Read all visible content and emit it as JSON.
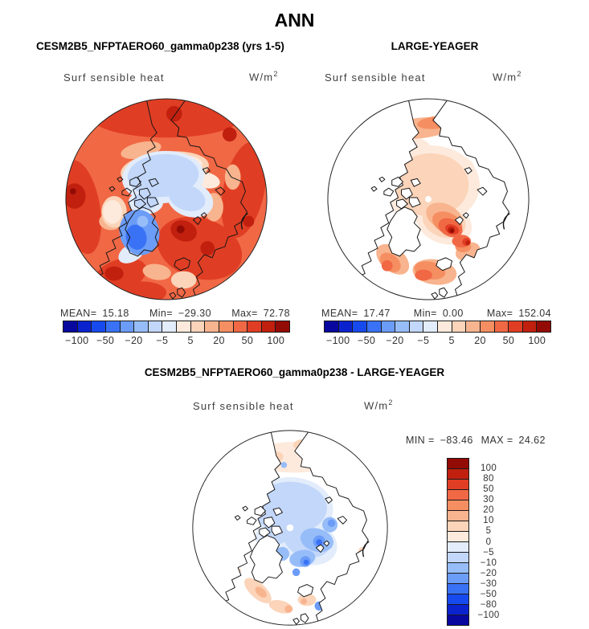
{
  "title": "ANN",
  "field_label": "Surf sensible heat",
  "units": {
    "base": "W/m",
    "sup": "2"
  },
  "palette": [
    "#08089f",
    "#0b23cf",
    "#174aee",
    "#3a72f5",
    "#6b9cf8",
    "#97bdf9",
    "#c2d7fa",
    "#e2ecfb",
    "#fdeadc",
    "#fbd4b9",
    "#f8b48e",
    "#f58f62",
    "#f16845",
    "#e03e24",
    "#c1200f",
    "#930b05"
  ],
  "panels": {
    "model": {
      "subtitle": "CESM2B5_NFPTAERO60_gamma0p238 (yrs 1-5)",
      "stats": {
        "mean_label": "MEAN=",
        "mean": "15.18",
        "min_label": "Min=",
        "min": "−29.30",
        "max_label": "Max=",
        "max": "72.78"
      },
      "cbar_ticks": [
        "−100",
        "−50",
        "−20",
        "−5",
        "5",
        "20",
        "50",
        "100"
      ]
    },
    "obs": {
      "subtitle": "LARGE-YEAGER",
      "stats": {
        "mean_label": "MEAN=",
        "mean": "17.47",
        "min_label": "Min=",
        "min": "0.00",
        "max_label": "Max=",
        "max": "152.04"
      },
      "cbar_ticks": [
        "−100",
        "−50",
        "−20",
        "−5",
        "5",
        "20",
        "50",
        "100"
      ]
    },
    "diff": {
      "subtitle": "CESM2B5_NFPTAERO60_gamma0p238 - LARGE-YEAGER",
      "stats": {
        "min_label": "MIN =",
        "min": "−83.46",
        "max_label": "MAX =",
        "max": "24.62"
      },
      "cbar_ticks": [
        "100",
        "80",
        "50",
        "30",
        "20",
        "10",
        "5",
        "0",
        "−5",
        "−10",
        "−20",
        "−30",
        "−50",
        "−80",
        "−100"
      ]
    }
  },
  "chart_data": [
    {
      "type": "heatmap",
      "title": "CESM2B5_NFPTAERO60_gamma0p238 (yrs 1-5)",
      "variable": "Surf sensible heat",
      "units": "W/m2",
      "projection": "north polar stereographic map",
      "stats": {
        "mean": 15.18,
        "min": -29.3,
        "max": 72.78
      },
      "labeled_levels": [
        -100,
        -50,
        -20,
        -5,
        5,
        20,
        50,
        100
      ],
      "n_color_bins": 16,
      "legend_position": "bottom",
      "notes": "Arctic map: ocean margins strongly positive (orange/red), central Arctic slightly negative (pale blue), Greenland negative (blue)"
    },
    {
      "type": "heatmap",
      "title": "LARGE-YEAGER",
      "variable": "Surf sensible heat",
      "units": "W/m2",
      "projection": "north polar stereographic map",
      "stats": {
        "mean": 17.47,
        "min": 0.0,
        "max": 152.04
      },
      "labeled_levels": [
        -100,
        -50,
        -20,
        -5,
        5,
        20,
        50,
        100
      ],
      "n_color_bins": 16,
      "legend_position": "bottom",
      "notes": "Ocean-only data: land white; large positive values (orange/dark red) in Nordic/Barents seas and Bering sea, weak positive central Arctic"
    },
    {
      "type": "heatmap",
      "title": "CESM2B5_NFPTAERO60_gamma0p238 - LARGE-YEAGER",
      "variable": "Surf sensible heat",
      "units": "W/m2",
      "projection": "north polar stereographic map",
      "stats": {
        "min": -83.46,
        "max": 24.62
      },
      "labeled_levels": [
        100,
        80,
        50,
        30,
        20,
        10,
        5,
        0,
        -5,
        -10,
        -20,
        -30,
        -50,
        -80,
        -100
      ],
      "n_color_bins": 16,
      "legend_position": "right",
      "notes": "Difference map: central Arctic and Barents/Kara seas negative (blue), scattered weak positive (peach) around periphery, land white"
    }
  ]
}
